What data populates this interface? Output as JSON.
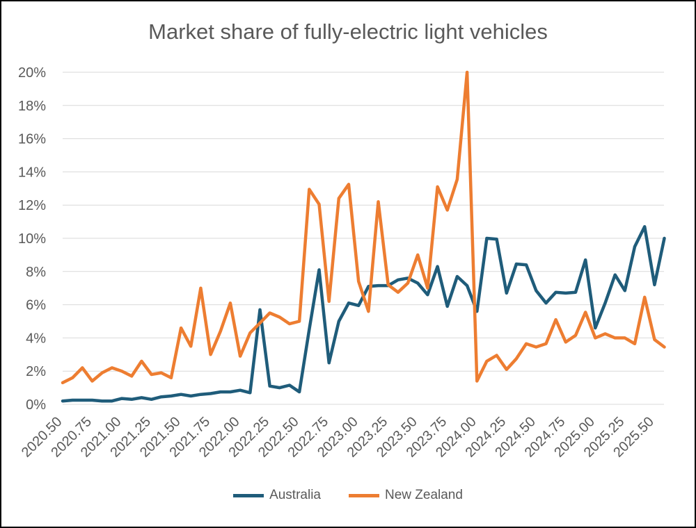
{
  "chart_data": {
    "type": "line",
    "title": "Market share of fully-electric light vehicles",
    "xlabel": "",
    "ylabel": "",
    "xlim": [
      2020.5,
      2025.58
    ],
    "ylim": [
      0,
      20
    ],
    "y_ticks": [
      "0%",
      "2%",
      "4%",
      "6%",
      "8%",
      "10%",
      "12%",
      "14%",
      "16%",
      "18%",
      "20%"
    ],
    "x_ticks": [
      "2020.50",
      "2020.75",
      "2021.00",
      "2021.25",
      "2021.50",
      "2021.75",
      "2022.00",
      "2022.25",
      "2022.50",
      "2022.75",
      "2023.00",
      "2023.25",
      "2023.50",
      "2023.75",
      "2024.00",
      "2024.25",
      "2024.50",
      "2024.75",
      "2025.00",
      "2025.25",
      "2025.50"
    ],
    "x_start": 2020.5,
    "x_step": 0.08333,
    "legend_position": "bottom",
    "grid": true,
    "series": [
      {
        "name": "Australia",
        "color": "#1f5c7a",
        "values": [
          0.2,
          0.25,
          0.25,
          0.25,
          0.2,
          0.2,
          0.35,
          0.3,
          0.4,
          0.3,
          0.45,
          0.5,
          0.6,
          0.5,
          0.6,
          0.65,
          0.75,
          0.75,
          0.85,
          0.7,
          5.7,
          1.1,
          1.0,
          1.15,
          0.75,
          4.5,
          8.1,
          2.5,
          5.0,
          6.1,
          5.95,
          7.1,
          7.15,
          7.15,
          7.5,
          7.6,
          7.3,
          6.6,
          8.3,
          5.9,
          7.7,
          7.15,
          5.6,
          10.0,
          9.95,
          6.7,
          8.45,
          8.4,
          6.85,
          6.1,
          6.75,
          6.7,
          6.75,
          8.7,
          4.6,
          6.1,
          7.8,
          6.85,
          9.5,
          10.7,
          7.2,
          10.0
        ]
      },
      {
        "name": "New Zealand",
        "color": "#ed7d31",
        "values": [
          1.3,
          1.6,
          2.2,
          1.4,
          1.9,
          2.2,
          2.0,
          1.7,
          2.6,
          1.8,
          1.9,
          1.6,
          4.6,
          3.5,
          7.0,
          3.0,
          4.4,
          6.1,
          2.9,
          4.3,
          4.9,
          5.5,
          5.25,
          4.85,
          5.0,
          12.95,
          12.05,
          6.2,
          12.4,
          13.25,
          7.4,
          5.6,
          12.2,
          7.2,
          6.75,
          7.3,
          9.0,
          7.0,
          13.1,
          11.7,
          13.55,
          20.0,
          1.4,
          2.6,
          2.95,
          2.1,
          2.75,
          3.65,
          3.45,
          3.65,
          5.1,
          3.75,
          4.15,
          5.55,
          4.0,
          4.25,
          4.0,
          4.0,
          3.65,
          6.45,
          3.9,
          3.45
        ]
      }
    ]
  }
}
